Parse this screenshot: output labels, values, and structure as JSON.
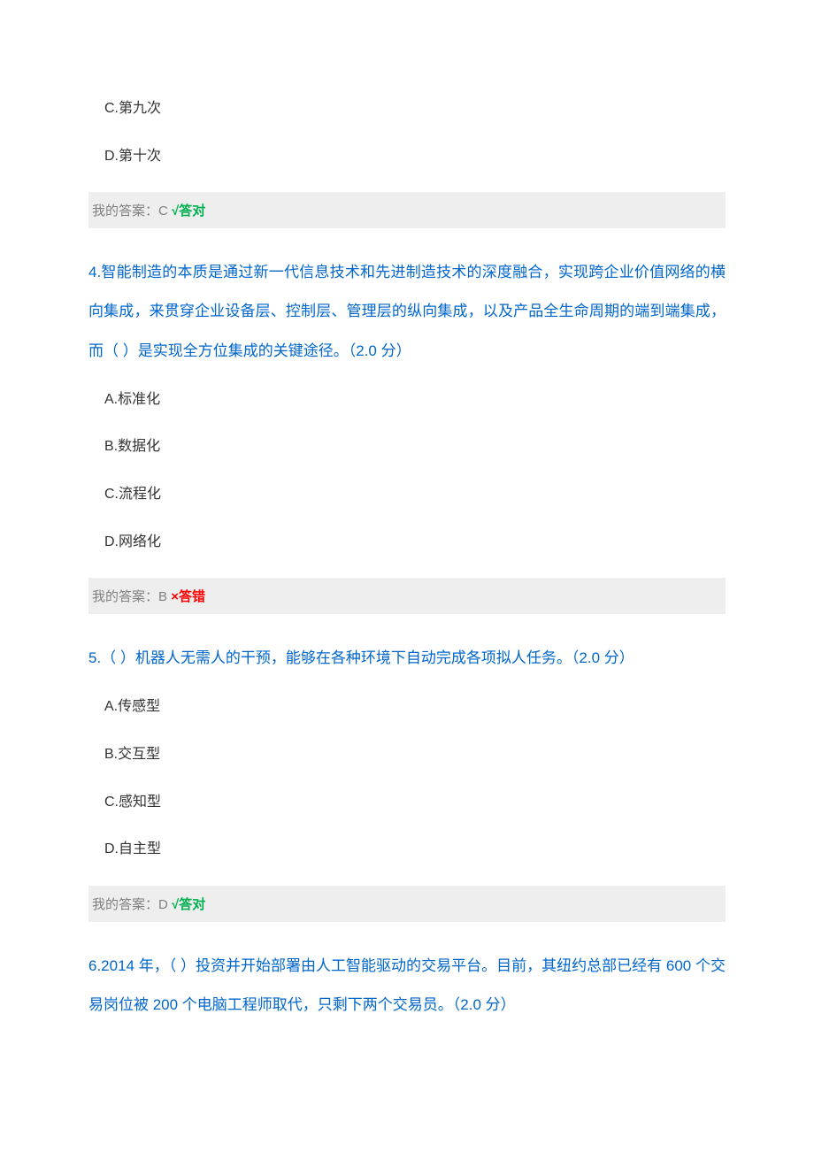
{
  "colors": {
    "question_text": "#0066cc",
    "option_text": "#333333",
    "answer_bar_bg": "#eeeeee",
    "answer_bar_text": "#808080",
    "correct": "#00b050",
    "wrong": "#ff0000",
    "page_bg": "#ffffff"
  },
  "typography": {
    "question_fontsize": 17,
    "option_fontsize": 16,
    "answer_fontsize": 15,
    "question_line_height": 2.6,
    "font_family": "Microsoft YaHei"
  },
  "q3": {
    "options": {
      "c": "C.第九次",
      "d": "D.第十次"
    },
    "answer_prefix": "我的答案：C ",
    "answer_mark": "√答对",
    "answer_status": "correct"
  },
  "q4": {
    "text": "4.智能制造的本质是通过新一代信息技术和先进制造技术的深度融合，实现跨企业价值网络的横向集成，来贯穿企业设备层、控制层、管理层的纵向集成，以及产品全生命周期的端到端集成，而（ ）是实现全方位集成的关键途径。（2.0 分）",
    "options": {
      "a": "A.标准化",
      "b": "B.数据化",
      "c": "C.流程化",
      "d": "D.网络化"
    },
    "answer_prefix": "我的答案：B ",
    "answer_mark": "×答错",
    "answer_status": "wrong"
  },
  "q5": {
    "text": "5.（ ）机器人无需人的干预，能够在各种环境下自动完成各项拟人任务。（2.0 分）",
    "options": {
      "a": "A.传感型",
      "b": "B.交互型",
      "c": "C.感知型",
      "d": "D.自主型"
    },
    "answer_prefix": "我的答案：D ",
    "answer_mark": "√答对",
    "answer_status": "correct"
  },
  "q6": {
    "text": "6.2014 年，（ ）投资并开始部署由人工智能驱动的交易平台。目前，其纽约总部已经有 600 个交易岗位被 200 个电脑工程师取代，只剩下两个交易员。（2.0 分）"
  }
}
